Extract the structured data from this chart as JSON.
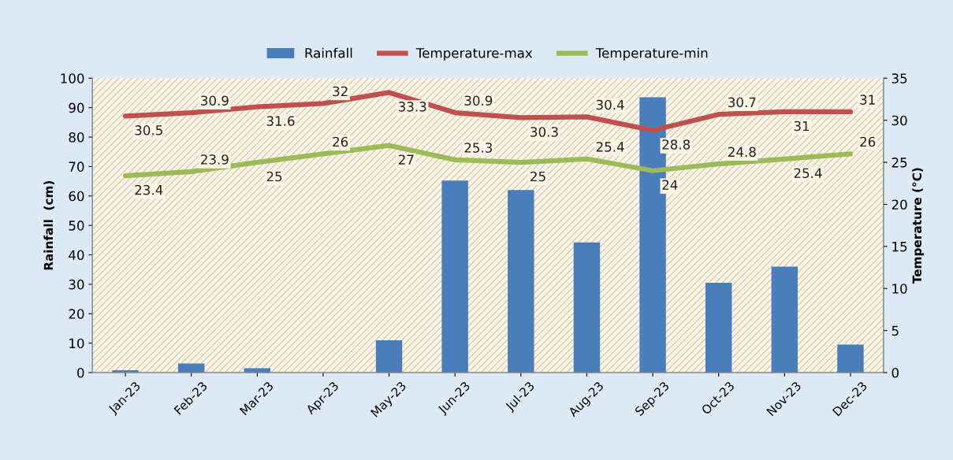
{
  "chart_data": {
    "type": "bar",
    "ylabel": "Rainfall  (cm)",
    "y2label": "Temperature (°C)",
    "categories": [
      "Jan-23",
      "Feb-23",
      "Mar-23",
      "Apr-23",
      "May-23",
      "Jun-23",
      "Jul-23",
      "Aug-23",
      "Sep-23",
      "Oct-23",
      "Nov-23",
      "Dec-23"
    ],
    "series": [
      {
        "name": "Rainfall",
        "color": "#4a7ebb",
        "values": [
          0.8,
          3.1,
          1.5,
          0,
          11.0,
          65.2,
          62.0,
          44.2,
          93.5,
          30.5,
          36.0,
          9.5
        ]
      },
      {
        "name": "Temperature-max",
        "type": "line",
        "axis": "y2",
        "color": "#c0504d",
        "values": [
          30.5,
          30.9,
          31.6,
          32,
          33.3,
          30.9,
          30.3,
          30.4,
          28.8,
          30.7,
          31,
          31
        ],
        "value_labels": [
          "30.5",
          "30.9",
          "31.6",
          "32",
          "33.3",
          "30.9",
          "30.3",
          "30.4",
          "28.8",
          "30.7",
          "31",
          "31"
        ]
      },
      {
        "name": "Temperature-min",
        "type": "line",
        "axis": "y2",
        "color": "#9bbb59",
        "values": [
          23.4,
          23.9,
          25,
          26,
          27,
          25.3,
          25,
          25.4,
          24,
          24.8,
          25.4,
          26
        ],
        "value_labels": [
          "23.4",
          "23.9",
          "25",
          "26",
          "27",
          "25.3",
          "25",
          "25.4",
          "24",
          "24.8",
          "25.4",
          "26"
        ]
      }
    ],
    "ylim": [
      0,
      100
    ],
    "yticks": [
      0,
      10,
      20,
      30,
      40,
      50,
      60,
      70,
      80,
      90,
      100
    ],
    "y2lim": [
      0,
      35
    ],
    "y2ticks": [
      0,
      5,
      10,
      15,
      20,
      25,
      30,
      35
    ],
    "grid": false,
    "legend": "top"
  }
}
